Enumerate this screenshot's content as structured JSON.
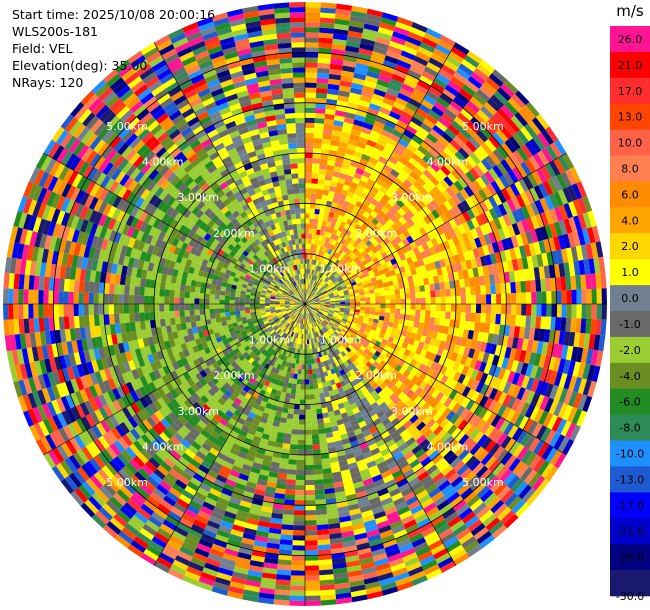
{
  "info": {
    "start_time": "Start time: 2025/10/08 20:00:16",
    "instrument": "WLS200s-181",
    "field": "Field: VEL",
    "elevation": "Elevation(deg): 35.00",
    "nrays": "NRays: 120"
  },
  "chart_data": {
    "type": "heatmap",
    "projection": "polar-ppi",
    "n_rays": 120,
    "max_range_km": 6.0,
    "range_rings_km": [
      1,
      2,
      3,
      4,
      5
    ],
    "ring_labels": [
      "1.00km",
      "2.00km",
      "3.00km",
      "4.00km",
      "5.00km"
    ],
    "colorbar_unit": "m/s",
    "colorbar_ticks": [
      "26.0",
      "21.0",
      "17.0",
      "13.0",
      "10.0",
      "8.0",
      "6.0",
      "4.0",
      "2.0",
      "1.0",
      "0.0",
      "-1.0",
      "-2.0",
      "-4.0",
      "-6.0",
      "-8.0",
      "-10.0",
      "-13.0",
      "-17.0",
      "-21.0",
      "-26.0",
      "-30.0"
    ],
    "colorbar_colors": [
      "#ff1493",
      "#ff0000",
      "#ff2d2d",
      "#ff4500",
      "#ff6347",
      "#ff7f50",
      "#ff8c00",
      "#ffa500",
      "#ffd700",
      "#ffff00",
      "#708090",
      "#696969",
      "#9acd32",
      "#6b8e23",
      "#228b22",
      "#2e8b57",
      "#1e90ff",
      "#1e5ad2",
      "#0000ff",
      "#0000cd",
      "#000080",
      "#191970"
    ]
  }
}
